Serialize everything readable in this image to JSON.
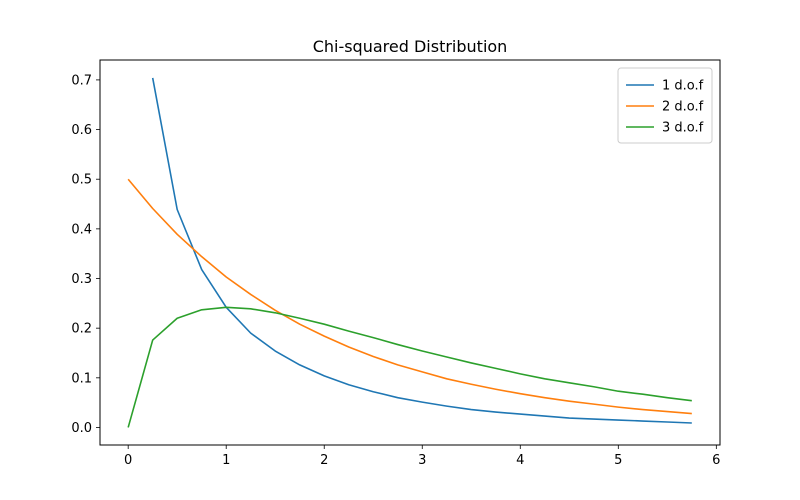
{
  "chart_data": {
    "type": "line",
    "title": "Chi-squared Distribution",
    "xlabel": "",
    "ylabel": "",
    "xlim": [
      -0.2875,
      6.0375
    ],
    "ylim": [
      -0.0353,
      0.7401
    ],
    "xticks": [
      0,
      1,
      2,
      3,
      4,
      5,
      6
    ],
    "yticks": [
      0.0,
      0.1,
      0.2,
      0.3,
      0.4,
      0.5,
      0.6,
      0.7
    ],
    "ytick_labels": [
      "0.0",
      "0.1",
      "0.2",
      "0.3",
      "0.4",
      "0.5",
      "0.6",
      "0.7"
    ],
    "grid": false,
    "legend": "top-right",
    "series": [
      {
        "name": "1 d.o.f",
        "color": "#1f77b4",
        "x": [
          0.25,
          0.5,
          0.75,
          1.0,
          1.25,
          1.5,
          1.75,
          2.0,
          2.25,
          2.5,
          2.75,
          3.0,
          3.25,
          3.5,
          3.75,
          4.0,
          4.25,
          4.5,
          4.75,
          5.0,
          5.25,
          5.5,
          5.75
        ],
        "values": [
          0.704,
          0.439,
          0.318,
          0.242,
          0.19,
          0.154,
          0.126,
          0.104,
          0.086,
          0.072,
          0.06,
          0.051,
          0.043,
          0.036,
          0.031,
          0.027,
          0.023,
          0.019,
          0.017,
          0.015,
          0.013,
          0.011,
          0.009
        ]
      },
      {
        "name": "2 d.o.f",
        "color": "#ff7f0e",
        "x": [
          0.0,
          0.25,
          0.5,
          0.75,
          1.0,
          1.25,
          1.5,
          1.75,
          2.0,
          2.25,
          2.5,
          2.75,
          3.0,
          3.25,
          3.5,
          3.75,
          4.0,
          4.25,
          4.5,
          4.75,
          5.0,
          5.25,
          5.5,
          5.75
        ],
        "values": [
          0.5,
          0.441,
          0.389,
          0.344,
          0.303,
          0.268,
          0.236,
          0.208,
          0.184,
          0.162,
          0.143,
          0.126,
          0.112,
          0.098,
          0.087,
          0.077,
          0.068,
          0.06,
          0.053,
          0.047,
          0.041,
          0.036,
          0.032,
          0.028
        ]
      },
      {
        "name": "3 d.o.f",
        "color": "#2ca02c",
        "x": [
          0.0,
          0.25,
          0.5,
          0.75,
          1.0,
          1.25,
          1.5,
          1.75,
          2.0,
          2.25,
          2.5,
          2.75,
          3.0,
          3.25,
          3.5,
          3.75,
          4.0,
          4.25,
          4.5,
          4.75,
          5.0,
          5.25,
          5.5,
          5.75
        ],
        "values": [
          0.0,
          0.176,
          0.22,
          0.237,
          0.242,
          0.239,
          0.231,
          0.22,
          0.208,
          0.194,
          0.181,
          0.167,
          0.154,
          0.142,
          0.13,
          0.119,
          0.108,
          0.098,
          0.09,
          0.082,
          0.073,
          0.067,
          0.06,
          0.054
        ]
      }
    ]
  }
}
